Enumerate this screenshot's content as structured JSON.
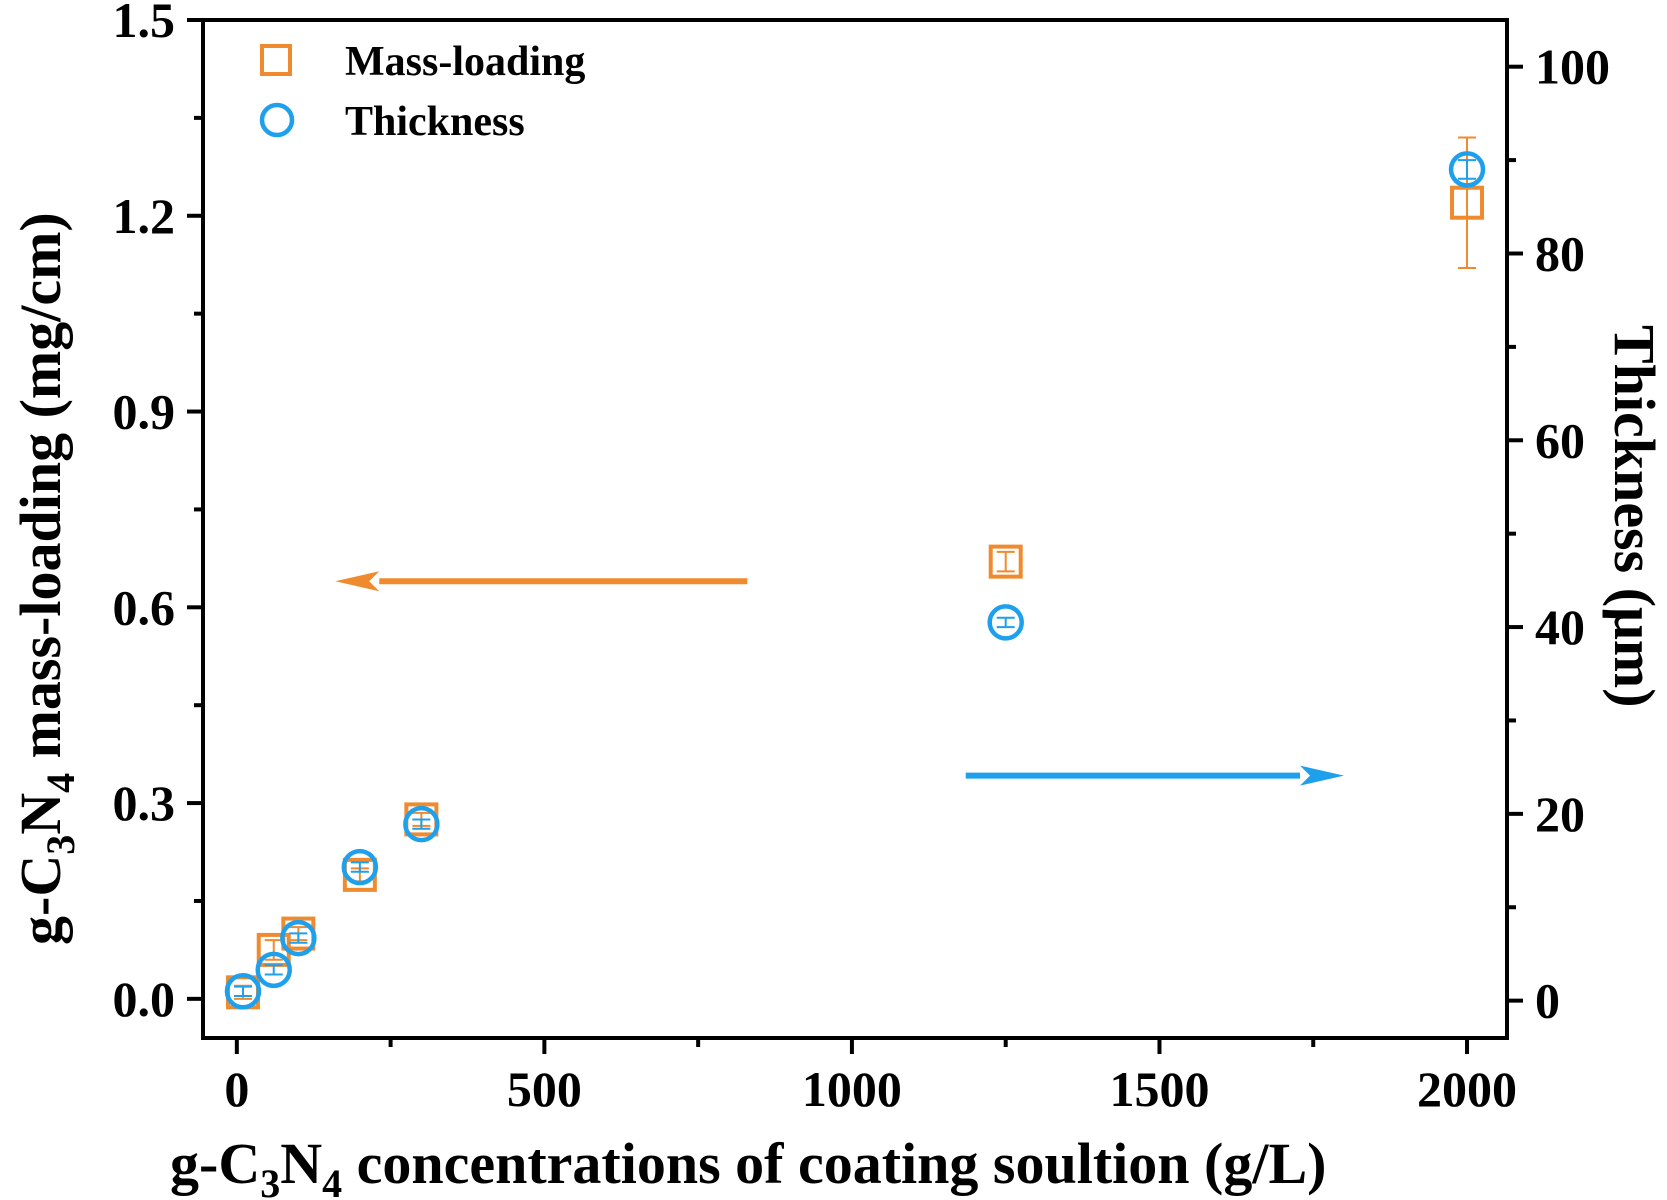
{
  "chart_data": {
    "type": "scatter",
    "xlabel": {
      "prefix": "g-C",
      "sub1": "3",
      "mid": "N",
      "sub2": "4",
      "suffix": " concentrations of coating soultion (g/L)"
    },
    "ylabel_left": {
      "prefix": "g-C",
      "sub1": "3",
      "mid": "N",
      "sub2": "4",
      "suffix": " mass-loading (mg/cm)"
    },
    "ylabel_right": "Thickness (μm)",
    "xlim": [
      -55,
      2065
    ],
    "ylim_left": [
      -0.06,
      1.5
    ],
    "ylim_right": [
      -4,
      105
    ],
    "x_ticks": [
      0,
      500,
      1000,
      1500,
      2000
    ],
    "x_tick_labels": [
      "0",
      "500",
      "1000",
      "1500",
      "2000"
    ],
    "y_left_ticks": [
      0.0,
      0.3,
      0.6,
      0.9,
      1.2,
      1.5
    ],
    "y_left_tick_labels": [
      "0.0",
      "0.3",
      "0.6",
      "0.9",
      "1.2",
      "1.5"
    ],
    "y_right_ticks": [
      0,
      20,
      40,
      60,
      80,
      100
    ],
    "y_right_tick_labels": [
      "0",
      "20",
      "40",
      "60",
      "80",
      "100"
    ],
    "legend_position": "top-left",
    "series": [
      {
        "name": "Mass-loading",
        "axis": "left",
        "marker": "square",
        "color": "#F08A2E",
        "points": [
          {
            "x": 10,
            "y": 0.01,
            "err": 0.01
          },
          {
            "x": 60,
            "y": 0.075,
            "err": 0.015
          },
          {
            "x": 100,
            "y": 0.1,
            "err": 0.01
          },
          {
            "x": 200,
            "y": 0.19,
            "err": 0.01
          },
          {
            "x": 300,
            "y": 0.275,
            "err": 0.01
          },
          {
            "x": 1250,
            "y": 0.67,
            "err": 0.015
          },
          {
            "x": 2000,
            "y": 1.22,
            "err": 0.1
          }
        ]
      },
      {
        "name": "Thickness",
        "axis": "right",
        "marker": "circle",
        "color": "#1EA0EC",
        "points": [
          {
            "x": 10,
            "y": 1.0,
            "err": 0.5
          },
          {
            "x": 60,
            "y": 3.3,
            "err": 0.5
          },
          {
            "x": 100,
            "y": 6.7,
            "err": 0.5
          },
          {
            "x": 200,
            "y": 14.3,
            "err": 0.5
          },
          {
            "x": 300,
            "y": 18.9,
            "err": 0.5
          },
          {
            "x": 1250,
            "y": 40.5,
            "err": 0.5
          },
          {
            "x": 2000,
            "y": 89.0,
            "err": 1.0
          }
        ]
      }
    ],
    "annotations": [
      {
        "type": "arrow",
        "direction": "left",
        "color": "#F08A2E",
        "x_from": 830,
        "x_to": 160,
        "y_left": 0.64
      },
      {
        "type": "arrow",
        "direction": "right",
        "color": "#1EA0EC",
        "x_from": 1185,
        "x_to": 1800,
        "y_left": 0.342
      }
    ]
  }
}
